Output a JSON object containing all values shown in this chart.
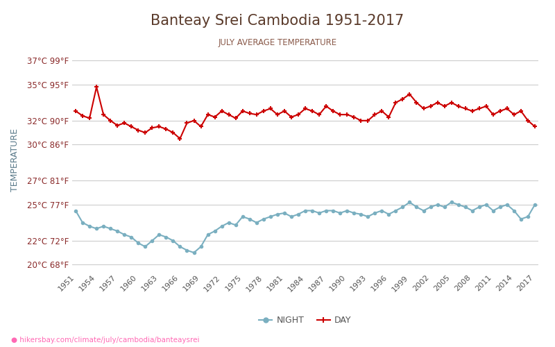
{
  "title": "Banteay Srei Cambodia 1951-2017",
  "subtitle": "JULY AVERAGE TEMPERATURE",
  "footer": "hikersbay.com/climate/july/cambodia/banteaysrei",
  "xlabel": "",
  "ylabel": "TEMPERATURE",
  "years": [
    1951,
    1952,
    1953,
    1954,
    1955,
    1956,
    1957,
    1958,
    1959,
    1960,
    1961,
    1962,
    1963,
    1964,
    1965,
    1966,
    1967,
    1968,
    1969,
    1970,
    1971,
    1972,
    1973,
    1974,
    1975,
    1976,
    1977,
    1978,
    1979,
    1980,
    1981,
    1982,
    1983,
    1984,
    1985,
    1986,
    1987,
    1988,
    1989,
    1990,
    1991,
    1992,
    1993,
    1994,
    1995,
    1996,
    1997,
    1998,
    1999,
    2000,
    2001,
    2002,
    2003,
    2004,
    2005,
    2006,
    2007,
    2008,
    2009,
    2010,
    2011,
    2012,
    2013,
    2014,
    2015,
    2016,
    2017
  ],
  "day_temps": [
    32.8,
    32.4,
    32.2,
    34.8,
    32.5,
    32.0,
    31.6,
    31.8,
    31.5,
    31.2,
    31.0,
    31.4,
    31.5,
    31.3,
    31.0,
    30.5,
    31.8,
    32.0,
    31.5,
    32.5,
    32.3,
    32.8,
    32.5,
    32.2,
    32.8,
    32.6,
    32.5,
    32.8,
    33.0,
    32.5,
    32.8,
    32.3,
    32.5,
    33.0,
    32.8,
    32.5,
    33.2,
    32.8,
    32.5,
    32.5,
    32.3,
    32.0,
    32.0,
    32.5,
    32.8,
    32.3,
    33.5,
    33.8,
    34.2,
    33.5,
    33.0,
    33.2,
    33.5,
    33.2,
    33.5,
    33.2,
    33.0,
    32.8,
    33.0,
    33.2,
    32.5,
    32.8,
    33.0,
    32.5,
    32.8,
    32.0,
    31.5
  ],
  "night_temps": [
    24.5,
    23.5,
    23.2,
    23.0,
    23.2,
    23.0,
    22.8,
    22.5,
    22.3,
    21.8,
    21.5,
    22.0,
    22.5,
    22.3,
    22.0,
    21.5,
    21.2,
    21.0,
    21.5,
    22.5,
    22.8,
    23.2,
    23.5,
    23.3,
    24.0,
    23.8,
    23.5,
    23.8,
    24.0,
    24.2,
    24.3,
    24.0,
    24.2,
    24.5,
    24.5,
    24.3,
    24.5,
    24.5,
    24.3,
    24.5,
    24.3,
    24.2,
    24.0,
    24.3,
    24.5,
    24.2,
    24.5,
    24.8,
    25.2,
    24.8,
    24.5,
    24.8,
    25.0,
    24.8,
    25.2,
    25.0,
    24.8,
    24.5,
    24.8,
    25.0,
    24.5,
    24.8,
    25.0,
    24.5,
    23.8,
    24.0,
    25.0
  ],
  "day_color": "#cc0000",
  "night_color": "#7aafc0",
  "yticks_c": [
    20,
    22,
    25,
    27,
    30,
    32,
    35,
    37
  ],
  "yticks_labels": [
    "20°C 68°F",
    "22°C 72°F",
    "25°C 77°F",
    "27°C 81°F",
    "30°C 86°F",
    "32°C 90°F",
    "35°C 95°F",
    "37°C 99°F"
  ],
  "xtick_years": [
    1951,
    1954,
    1957,
    1960,
    1963,
    1966,
    1969,
    1972,
    1975,
    1978,
    1981,
    1984,
    1987,
    1990,
    1993,
    1996,
    1999,
    2002,
    2005,
    2008,
    2011,
    2014,
    2017
  ],
  "ylim": [
    19.5,
    38.0
  ],
  "xlim": [
    1950.5,
    2017.5
  ],
  "bg_color": "#ffffff",
  "grid_color": "#cccccc",
  "title_color": "#5a3a2a",
  "subtitle_color": "#8a5a4a",
  "tick_color": "#8a2a2a",
  "ylabel_color": "#5a7a8a",
  "marker_size": 4,
  "line_width": 1.5
}
